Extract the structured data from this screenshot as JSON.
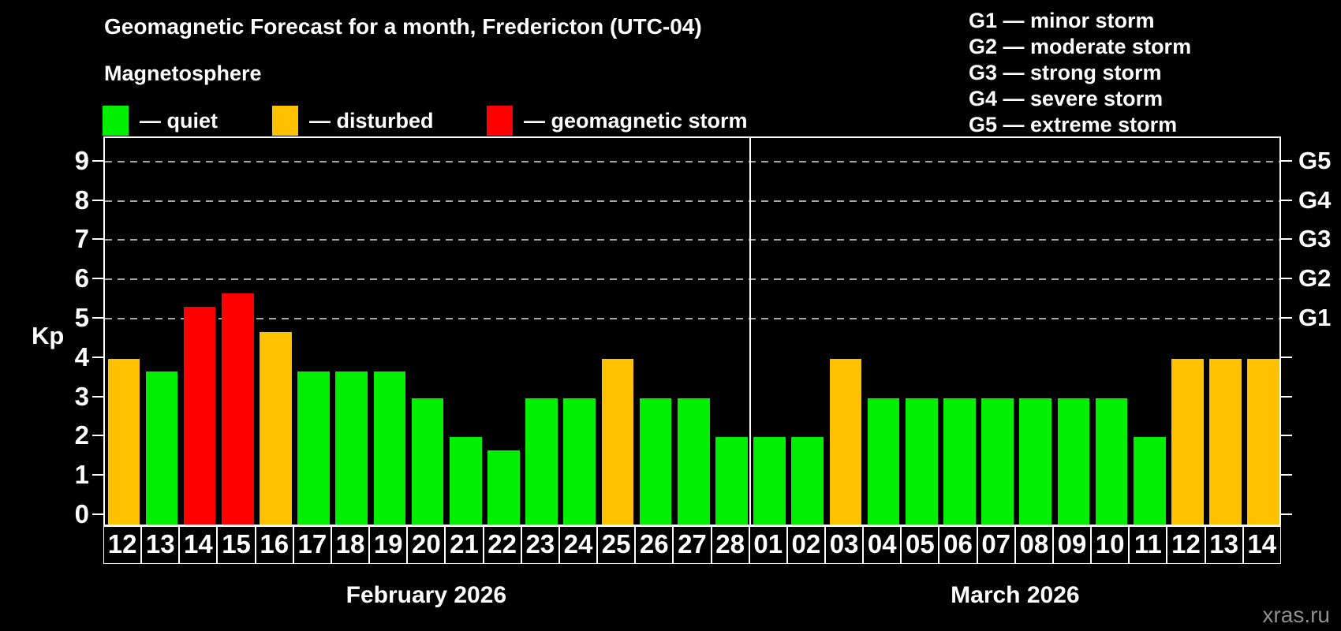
{
  "header": {
    "title": "Geomagnetic Forecast for a month, Fredericton (UTC-04)",
    "subtitle": "Magnetosphere",
    "legend": [
      {
        "key": "quiet",
        "label": "— quiet",
        "color": "#00ee00"
      },
      {
        "key": "disturbed",
        "label": "— disturbed",
        "color": "#ffc000"
      },
      {
        "key": "storm",
        "label": "— geomagnetic storm",
        "color": "#ff0000"
      }
    ],
    "g_scale_legend": [
      {
        "text": "G1 — minor storm"
      },
      {
        "text": "G2 — moderate storm"
      },
      {
        "text": "G3 — strong storm"
      },
      {
        "text": "G4 — severe storm"
      },
      {
        "text": "G5 — extreme storm"
      }
    ]
  },
  "chart_data": {
    "type": "bar",
    "title": "Geomagnetic Forecast for a month, Fredericton (UTC-04)",
    "ylabel": "Kp",
    "ylim": [
      0,
      9.5
    ],
    "y_ticks": [
      0,
      1,
      2,
      3,
      4,
      5,
      6,
      7,
      8,
      9
    ],
    "gridlines_at": [
      5,
      6,
      7,
      8,
      9
    ],
    "grid": "dashed, only at storm levels G1–G5",
    "legend_position": "top-left",
    "right_axis_ticks": [
      {
        "kp": 5,
        "label": "G1"
      },
      {
        "kp": 6,
        "label": "G2"
      },
      {
        "kp": 7,
        "label": "G3"
      },
      {
        "kp": 8,
        "label": "G4"
      },
      {
        "kp": 9,
        "label": "G5"
      }
    ],
    "months": [
      {
        "label": "February 2026",
        "days": 17
      },
      {
        "label": "March 2026",
        "days": 14
      }
    ],
    "categories": [
      "12",
      "13",
      "14",
      "15",
      "16",
      "17",
      "18",
      "19",
      "20",
      "21",
      "22",
      "23",
      "24",
      "25",
      "26",
      "27",
      "28",
      "01",
      "02",
      "03",
      "04",
      "05",
      "06",
      "07",
      "08",
      "09",
      "10",
      "11",
      "12",
      "13",
      "14"
    ],
    "values": [
      4.0,
      3.67,
      5.33,
      5.67,
      4.67,
      3.67,
      3.67,
      3.67,
      3.0,
      2.0,
      1.67,
      3.0,
      3.0,
      4.0,
      3.0,
      3.0,
      2.0,
      2.0,
      2.0,
      4.0,
      3.0,
      3.0,
      3.0,
      3.0,
      3.0,
      3.0,
      3.0,
      2.0,
      4.0,
      4.0,
      4.0
    ],
    "statuses": [
      "disturbed",
      "quiet",
      "storm",
      "storm",
      "disturbed",
      "quiet",
      "quiet",
      "quiet",
      "quiet",
      "quiet",
      "quiet",
      "quiet",
      "quiet",
      "disturbed",
      "quiet",
      "quiet",
      "quiet",
      "quiet",
      "quiet",
      "disturbed",
      "quiet",
      "quiet",
      "quiet",
      "quiet",
      "quiet",
      "quiet",
      "quiet",
      "quiet",
      "disturbed",
      "disturbed",
      "disturbed"
    ]
  },
  "colors": {
    "quiet": "#00ee00",
    "disturbed": "#ffc000",
    "storm": "#ff0000",
    "grid": "#a6a6a6",
    "axis": "#ffffff",
    "background": "#000000",
    "watermark": "#8f8f8f"
  },
  "watermark": "xras.ru"
}
